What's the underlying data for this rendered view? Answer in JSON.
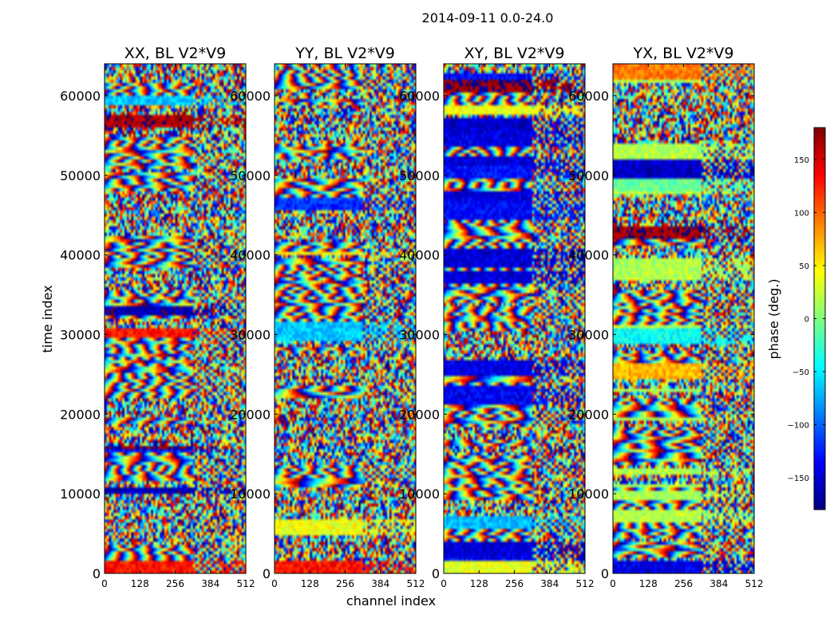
{
  "chart_data": {
    "type": "heatmap",
    "suptitle": "2014-09-11 0.0-24.0",
    "xlabel": "channel index",
    "ylabel": "time index",
    "panels": [
      {
        "title": "XX, BL V2*V9",
        "product": "XX"
      },
      {
        "title": "YY, BL V2*V9",
        "product": "YY"
      },
      {
        "title": "XY, BL V2*V9",
        "product": "XY"
      },
      {
        "title": "YX, BL V2*V9",
        "product": "YX"
      }
    ],
    "xlim": [
      0,
      512
    ],
    "ylim": [
      0,
      64000
    ],
    "xticks": [
      0,
      128,
      256,
      384,
      512
    ],
    "yticks": [
      0,
      10000,
      20000,
      30000,
      40000,
      50000,
      60000
    ],
    "colorbar": {
      "label": "phase (deg.)",
      "range": [
        -180,
        180
      ],
      "ticks": [
        150,
        100,
        50,
        0,
        -50,
        -100,
        -150
      ],
      "tick_labels": [
        "150",
        "100",
        "50",
        "0",
        "−50",
        "−100",
        "−150"
      ],
      "colormap": [
        "#00007f",
        "#0000ff",
        "#007fff",
        "#00ffff",
        "#7fff7f",
        "#ffff00",
        "#ff7f00",
        "#ff0000",
        "#7f0000"
      ]
    }
  }
}
